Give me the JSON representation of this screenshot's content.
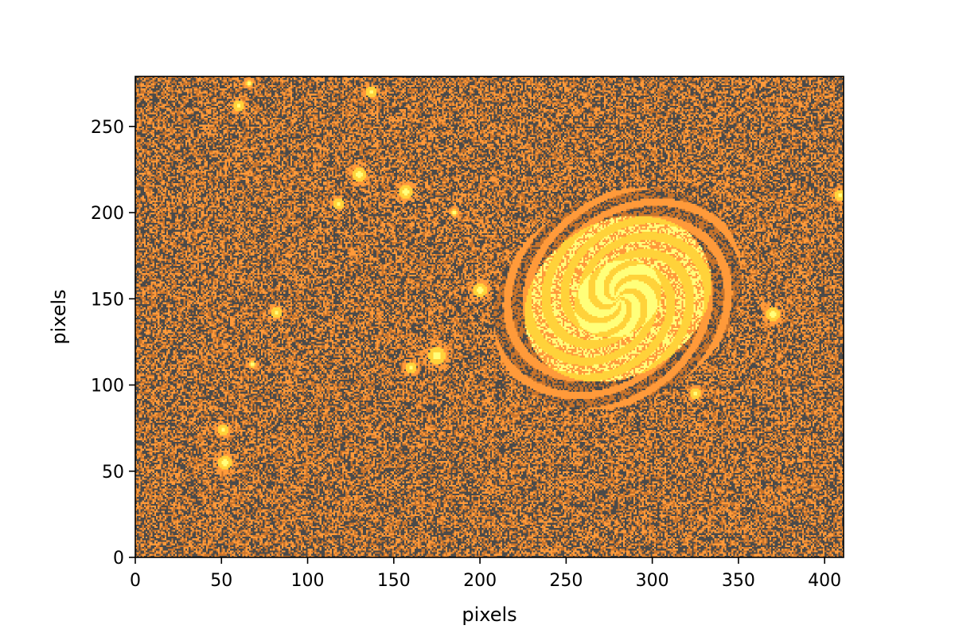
{
  "chart_data": {
    "type": "heatmap",
    "title": "",
    "xlabel": "pixels",
    "ylabel": "pixels",
    "xlim": [
      0,
      411
    ],
    "ylim": [
      0,
      279
    ],
    "xticks": [
      0,
      50,
      100,
      150,
      200,
      250,
      300,
      350,
      400
    ],
    "yticks": [
      0,
      50,
      100,
      150,
      200,
      250
    ],
    "xtick_labels": [
      "0",
      "50",
      "100",
      "150",
      "200",
      "250",
      "300",
      "350",
      "400"
    ],
    "ytick_labels": [
      "0",
      "50",
      "100",
      "150",
      "200",
      "250"
    ],
    "colormap": [
      "#4a4a4a",
      "#c8742c",
      "#ff9a3a",
      "#ffd23a",
      "#ffff7a"
    ],
    "galaxy": {
      "center": [
        280,
        150
      ],
      "semi_major": 76,
      "semi_minor": 60,
      "rotation_deg": 30
    },
    "stars": [
      {
        "x": 52,
        "y": 55,
        "r": 4
      },
      {
        "x": 51,
        "y": 74,
        "r": 3
      },
      {
        "x": 60,
        "y": 262,
        "r": 3
      },
      {
        "x": 66,
        "y": 275,
        "r": 2
      },
      {
        "x": 130,
        "y": 222,
        "r": 4
      },
      {
        "x": 157,
        "y": 212,
        "r": 4
      },
      {
        "x": 175,
        "y": 117,
        "r": 5
      },
      {
        "x": 200,
        "y": 155,
        "r": 4
      },
      {
        "x": 82,
        "y": 142,
        "r": 3
      },
      {
        "x": 118,
        "y": 205,
        "r": 3
      },
      {
        "x": 137,
        "y": 270,
        "r": 3
      },
      {
        "x": 370,
        "y": 141,
        "r": 4
      },
      {
        "x": 409,
        "y": 210,
        "r": 3
      },
      {
        "x": 160,
        "y": 110,
        "r": 3
      },
      {
        "x": 68,
        "y": 112,
        "r": 2
      },
      {
        "x": 325,
        "y": 95,
        "r": 3
      },
      {
        "x": 185,
        "y": 200,
        "r": 2
      }
    ]
  }
}
